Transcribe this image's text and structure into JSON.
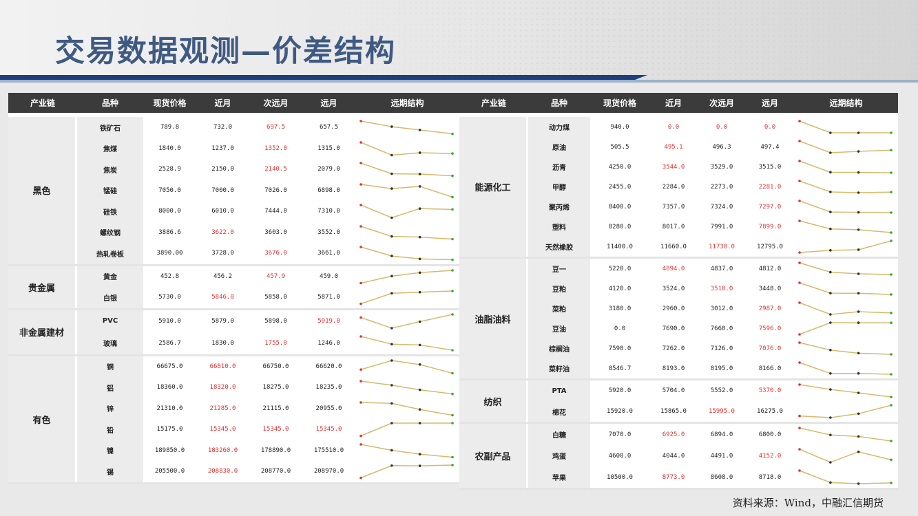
{
  "title": "交易数据观测—价差结构",
  "source": "资料来源：Wind，中融汇信期货",
  "headers": [
    "产业链",
    "品种",
    "现货价格",
    "近月",
    "次远月",
    "远月",
    "远期结构"
  ],
  "left_groups": [
    {
      "name": "黑色",
      "rows": [
        {
          "name": "铁矿石",
          "spot": "789.8",
          "near": "732.0",
          "next": "697.5",
          "far": "657.5",
          "red": "next"
        },
        {
          "name": "焦煤",
          "spot": "1840.0",
          "near": "1237.0",
          "next": "1352.0",
          "far": "1315.0",
          "red": "next"
        },
        {
          "name": "焦炭",
          "spot": "2528.9",
          "near": "2150.0",
          "next": "2140.5",
          "far": "2079.0",
          "red": "next"
        },
        {
          "name": "锰硅",
          "spot": "7050.0",
          "near": "7000.0",
          "next": "7026.0",
          "far": "6898.0",
          "red": ""
        },
        {
          "name": "硅铁",
          "spot": "8000.0",
          "near": "6010.0",
          "next": "7444.0",
          "far": "7310.0",
          "red": ""
        },
        {
          "name": "螺纹钢",
          "spot": "3886.6",
          "near": "3622.0",
          "next": "3603.0",
          "far": "3552.0",
          "red": "near"
        },
        {
          "name": "热轧卷板",
          "spot": "3890.00",
          "near": "3728.0",
          "next": "3676.0",
          "far": "3661.0",
          "red": "next"
        }
      ]
    },
    {
      "name": "贵金属",
      "rows": [
        {
          "name": "黄金",
          "spot": "452.8",
          "near": "456.2",
          "next": "457.9",
          "far": "459.0",
          "red": "next"
        },
        {
          "name": "白银",
          "spot": "5730.0",
          "near": "5846.0",
          "next": "5858.0",
          "far": "5871.0",
          "red": "near"
        }
      ]
    },
    {
      "name": "非金属建材",
      "rows": [
        {
          "name": "PVC",
          "spot": "5910.0",
          "near": "5879.0",
          "next": "5898.0",
          "far": "5919.0",
          "red": "far"
        },
        {
          "name": "玻璃",
          "spot": "2586.7",
          "near": "1830.0",
          "next": "1755.0",
          "far": "1246.0",
          "red": "next"
        }
      ]
    },
    {
      "name": "有色",
      "rows": [
        {
          "name": "铜",
          "spot": "66675.0",
          "near": "66810.0",
          "next": "66750.0",
          "far": "66620.0",
          "red": "near"
        },
        {
          "name": "铝",
          "spot": "18360.0",
          "near": "18320.0",
          "next": "18275.0",
          "far": "18235.0",
          "red": "near"
        },
        {
          "name": "锌",
          "spot": "21310.0",
          "near": "21285.0",
          "next": "21115.0",
          "far": "20955.0",
          "red": "near"
        },
        {
          "name": "铅",
          "spot": "15175.0",
          "near": "15345.0",
          "next": "15345.0",
          "far": "15345.0",
          "red": "near,next,far"
        },
        {
          "name": "镍",
          "spot": "189850.0",
          "near": "183260.0",
          "next": "178890.0",
          "far": "175510.0",
          "red": "near"
        },
        {
          "name": "锡",
          "spot": "205500.0",
          "near": "208830.0",
          "next": "208770.0",
          "far": "208970.0",
          "red": "near"
        }
      ]
    }
  ],
  "right_groups": [
    {
      "name": "能源化工",
      "rows": [
        {
          "name": "动力煤",
          "spot": "940.0",
          "near": "0.0",
          "next": "0.0",
          "far": "0.0",
          "red": "near,next,far"
        },
        {
          "name": "原油",
          "spot": "505.5",
          "near": "495.1",
          "next": "496.3",
          "far": "497.4",
          "red": "near"
        },
        {
          "name": "沥青",
          "spot": "4250.0",
          "near": "3544.0",
          "next": "3529.0",
          "far": "3515.0",
          "red": "near"
        },
        {
          "name": "甲醇",
          "spot": "2455.0",
          "near": "2284.0",
          "next": "2273.0",
          "far": "2281.0",
          "red": "far"
        },
        {
          "name": "聚丙烯",
          "spot": "8400.0",
          "near": "7357.0",
          "next": "7324.0",
          "far": "7297.0",
          "red": "far"
        },
        {
          "name": "塑料",
          "spot": "8280.0",
          "near": "8017.0",
          "next": "7991.0",
          "far": "7899.0",
          "red": "far"
        },
        {
          "name": "天然橡胶",
          "spot": "11400.0",
          "near": "11660.0",
          "next": "11730.0",
          "far": "12795.0",
          "red": "next"
        }
      ]
    },
    {
      "name": "油脂油料",
      "rows": [
        {
          "name": "豆一",
          "spot": "5220.0",
          "near": "4894.0",
          "next": "4837.0",
          "far": "4812.0",
          "red": "near"
        },
        {
          "name": "豆粕",
          "spot": "4120.0",
          "near": "3524.0",
          "next": "3518.0",
          "far": "3448.0",
          "red": "next"
        },
        {
          "name": "菜粕",
          "spot": "3180.0",
          "near": "2960.0",
          "next": "3012.0",
          "far": "2987.0",
          "red": "far"
        },
        {
          "name": "豆油",
          "spot": "0.0",
          "near": "7690.0",
          "next": "7660.0",
          "far": "7596.0",
          "red": "far"
        },
        {
          "name": "棕榈油",
          "spot": "7590.0",
          "near": "7262.0",
          "next": "7126.0",
          "far": "7076.0",
          "red": "far"
        },
        {
          "name": "菜籽油",
          "spot": "8546.7",
          "near": "8193.0",
          "next": "8195.0",
          "far": "8166.0",
          "red": ""
        }
      ]
    },
    {
      "name": "纺织",
      "rows": [
        {
          "name": "PTA",
          "spot": "5920.0",
          "near": "5704.0",
          "next": "5552.0",
          "far": "5370.0",
          "red": "far"
        },
        {
          "name": "棉花",
          "spot": "15920.0",
          "near": "15865.0",
          "next": "15995.0",
          "far": "16275.0",
          "red": "next"
        }
      ]
    },
    {
      "name": "农副产品",
      "rows": [
        {
          "name": "白糖",
          "spot": "7070.0",
          "near": "6925.0",
          "next": "6894.0",
          "far": "6800.0",
          "red": "near"
        },
        {
          "name": "鸡蛋",
          "spot": "4600.0",
          "near": "4044.0",
          "next": "4491.0",
          "far": "4152.0",
          "red": "far"
        },
        {
          "name": "苹果",
          "spot": "10500.0",
          "near": "8773.0",
          "next": "8608.0",
          "far": "8718.0",
          "red": "near"
        }
      ]
    }
  ]
}
